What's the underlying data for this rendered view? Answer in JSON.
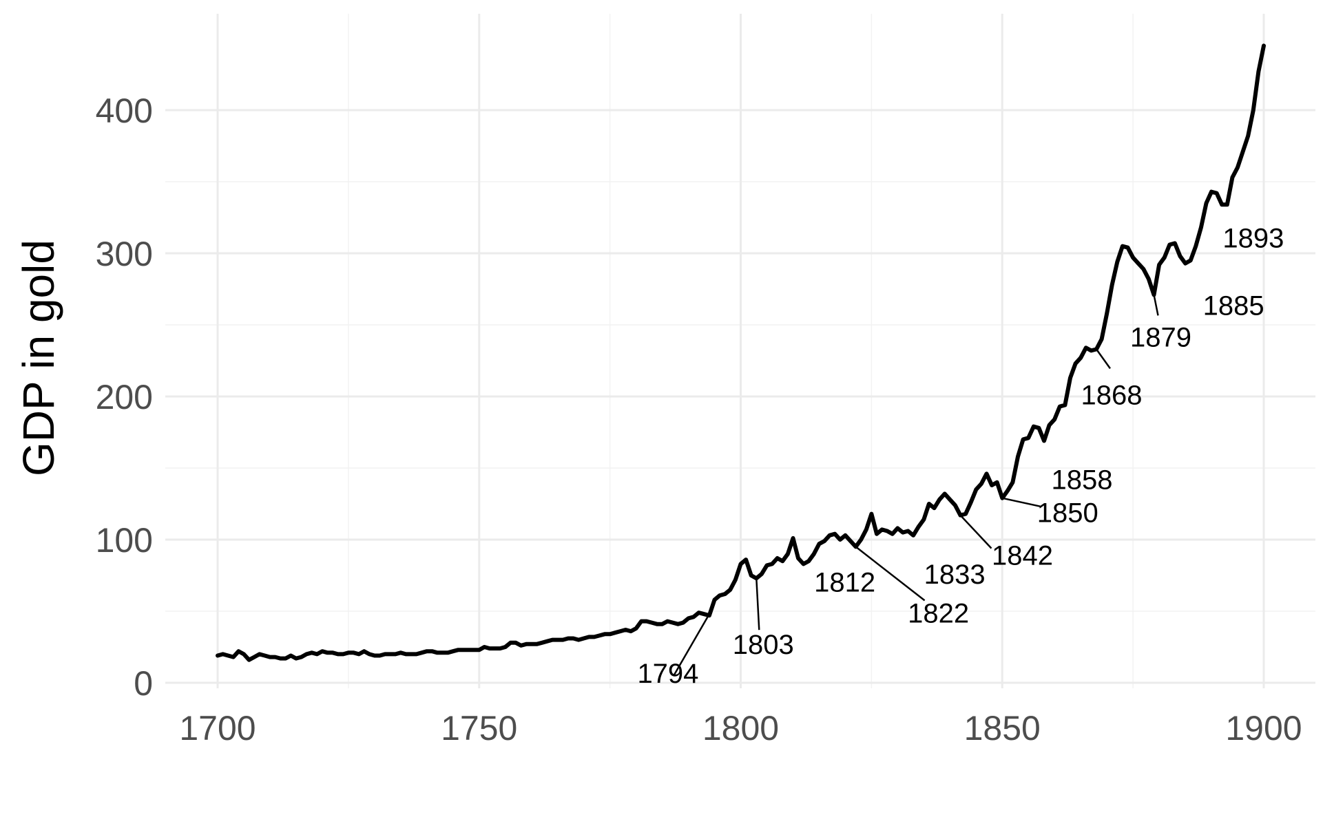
{
  "chart_data": {
    "type": "line",
    "title": "",
    "xlabel": "",
    "ylabel": "GDP in gold",
    "xlim": [
      1696,
      1904
    ],
    "ylim": [
      -3,
      450
    ],
    "x_ticks": [
      1700,
      1750,
      1800,
      1850,
      1900
    ],
    "x_tick_labels": [
      "1700",
      "1750",
      "1800",
      "1850",
      "1900"
    ],
    "x_minor_ticks": [
      1725,
      1775,
      1825,
      1875
    ],
    "y_ticks": [
      0,
      100,
      200,
      300,
      400
    ],
    "y_tick_labels": [
      "0",
      "100",
      "200",
      "300",
      "400"
    ],
    "y_minor_ticks": [
      50,
      150,
      250,
      350
    ],
    "grid": true,
    "legend": "none",
    "series": [
      {
        "color": "#000000",
        "x": [
          1700,
          1701,
          1702,
          1703,
          1704,
          1705,
          1706,
          1707,
          1708,
          1709,
          1710,
          1711,
          1712,
          1713,
          1714,
          1715,
          1716,
          1717,
          1718,
          1719,
          1720,
          1721,
          1722,
          1723,
          1724,
          1725,
          1726,
          1727,
          1728,
          1729,
          1730,
          1731,
          1732,
          1733,
          1734,
          1735,
          1736,
          1737,
          1738,
          1739,
          1740,
          1741,
          1742,
          1743,
          1744,
          1745,
          1746,
          1747,
          1748,
          1749,
          1750,
          1751,
          1752,
          1753,
          1754,
          1755,
          1756,
          1757,
          1758,
          1759,
          1760,
          1761,
          1762,
          1763,
          1764,
          1765,
          1766,
          1767,
          1768,
          1769,
          1770,
          1771,
          1772,
          1773,
          1774,
          1775,
          1776,
          1777,
          1778,
          1779,
          1780,
          1781,
          1782,
          1783,
          1784,
          1785,
          1786,
          1787,
          1788,
          1789,
          1790,
          1791,
          1792,
          1793,
          1794,
          1795,
          1796,
          1797,
          1798,
          1799,
          1800,
          1801,
          1802,
          1803,
          1804,
          1805,
          1806,
          1807,
          1808,
          1809,
          1810,
          1811,
          1812,
          1813,
          1814,
          1815,
          1816,
          1817,
          1818,
          1819,
          1820,
          1821,
          1822,
          1823,
          1824,
          1825,
          1826,
          1827,
          1828,
          1829,
          1830,
          1831,
          1832,
          1833,
          1834,
          1835,
          1836,
          1837,
          1838,
          1839,
          1840,
          1841,
          1842,
          1843,
          1844,
          1845,
          1846,
          1847,
          1848,
          1849,
          1850,
          1851,
          1852,
          1853,
          1854,
          1855,
          1856,
          1857,
          1858,
          1859,
          1860,
          1861,
          1862,
          1863,
          1864,
          1865,
          1866,
          1867,
          1868,
          1869,
          1870,
          1871,
          1872,
          1873,
          1874,
          1875,
          1876,
          1877,
          1878,
          1879,
          1880,
          1881,
          1882,
          1883,
          1884,
          1885,
          1886,
          1887,
          1888,
          1889,
          1890,
          1891,
          1892,
          1893,
          1894,
          1895,
          1896,
          1897,
          1898,
          1899,
          1900
        ],
        "values": [
          19,
          20,
          19,
          18,
          22,
          20,
          16,
          18,
          20,
          19,
          18,
          18,
          17,
          17,
          19,
          17,
          18,
          20,
          21,
          20,
          22,
          21,
          21,
          20,
          20,
          21,
          21,
          20,
          22,
          20,
          19,
          19,
          20,
          20,
          20,
          21,
          20,
          20,
          20,
          21,
          22,
          22,
          21,
          21,
          21,
          22,
          23,
          23,
          23,
          23,
          23,
          25,
          24,
          24,
          24,
          25,
          28,
          28,
          26,
          27,
          27,
          27,
          28,
          29,
          30,
          30,
          30,
          31,
          31,
          30,
          31,
          32,
          32,
          33,
          34,
          34,
          35,
          36,
          37,
          36,
          38,
          43,
          43,
          42,
          41,
          41,
          43,
          42,
          41,
          42,
          45,
          46,
          49,
          48,
          47,
          58,
          61,
          62,
          65,
          72,
          83,
          86,
          75,
          73,
          76,
          82,
          83,
          87,
          85,
          90,
          101,
          87,
          83,
          85,
          90,
          97,
          99,
          103,
          104,
          100,
          103,
          99,
          95,
          100,
          107,
          118,
          104,
          107,
          106,
          104,
          108,
          105,
          106,
          103,
          109,
          114,
          125,
          122,
          128,
          132,
          128,
          124,
          117,
          118,
          126,
          135,
          139,
          146,
          138,
          140,
          129,
          134,
          140,
          158,
          170,
          171,
          179,
          178,
          169,
          180,
          184,
          193,
          194,
          213,
          223,
          227,
          234,
          232,
          233,
          240,
          258,
          278,
          294,
          305,
          304,
          297,
          293,
          289,
          282,
          271,
          292,
          297,
          306,
          307,
          298,
          293,
          295,
          305,
          318,
          335,
          343,
          342,
          334,
          334,
          353,
          360,
          371,
          382,
          400,
          427,
          445
        ]
      }
    ],
    "annotations": [
      {
        "label": "1794",
        "x": 1794,
        "y": 48
      },
      {
        "label": "1803",
        "x": 1803,
        "y": 73
      },
      {
        "label": "1812",
        "x": 1812,
        "y": 83
      },
      {
        "label": "1822",
        "x": 1822,
        "y": 95
      },
      {
        "label": "1833",
        "x": 1833,
        "y": 103
      },
      {
        "label": "1842",
        "x": 1842,
        "y": 117
      },
      {
        "label": "1850",
        "x": 1850,
        "y": 129
      },
      {
        "label": "1858",
        "x": 1858,
        "y": 169
      },
      {
        "label": "1868",
        "x": 1868,
        "y": 233
      },
      {
        "label": "1879",
        "x": 1879,
        "y": 271
      },
      {
        "label": "1885",
        "x": 1885,
        "y": 293
      },
      {
        "label": "1893",
        "x": 1893,
        "y": 334
      }
    ]
  }
}
